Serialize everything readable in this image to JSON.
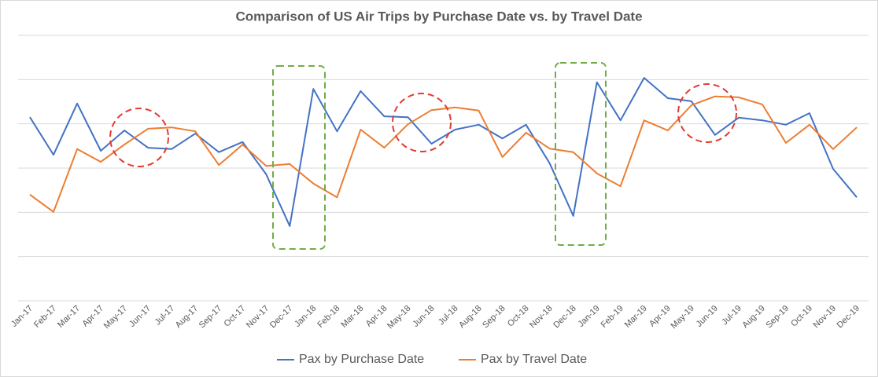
{
  "chart_data": {
    "type": "line",
    "title": "Comparison of US Air Trips by Purchase Date vs. by Travel Date",
    "categories": [
      "Jan-17",
      "Feb-17",
      "Mar-17",
      "Apr-17",
      "May-17",
      "Jun-17",
      "Jul-17",
      "Aug-17",
      "Sep-17",
      "Oct-17",
      "Nov-17",
      "Dec-17",
      "Jan-18",
      "Feb-18",
      "Mar-18",
      "Apr-18",
      "May-18",
      "Jun-18",
      "Jul-18",
      "Aug-18",
      "Sep-18",
      "Oct-18",
      "Nov-18",
      "Dec-18",
      "Jan-19",
      "Feb-19",
      "Mar-19",
      "Apr-19",
      "May-19",
      "Jun-19",
      "Jul-19",
      "Aug-19",
      "Sep-19",
      "Oct-19",
      "Nov-19",
      "Dec-19"
    ],
    "series": [
      {
        "name": "Pax by Purchase Date",
        "color": "#4472c4",
        "values": [
          4.15,
          3.3,
          4.46,
          3.39,
          3.85,
          3.46,
          3.43,
          3.78,
          3.36,
          3.59,
          2.86,
          1.69,
          4.79,
          3.83,
          4.74,
          4.17,
          4.15,
          3.55,
          3.87,
          3.98,
          3.67,
          3.98,
          3.11,
          1.92,
          4.94,
          4.08,
          5.04,
          4.58,
          4.51,
          3.75,
          4.14,
          4.08,
          3.98,
          4.24,
          2.98,
          2.34
        ]
      },
      {
        "name": "Pax by Travel Date",
        "color": "#ed7d31",
        "values": [
          2.4,
          2.01,
          3.43,
          3.14,
          3.53,
          3.89,
          3.92,
          3.83,
          3.07,
          3.53,
          3.05,
          3.09,
          2.65,
          2.34,
          3.87,
          3.46,
          3.99,
          4.31,
          4.37,
          4.3,
          3.25,
          3.8,
          3.44,
          3.36,
          2.88,
          2.59,
          4.08,
          3.85,
          4.42,
          4.62,
          4.6,
          4.44,
          3.57,
          3.98,
          3.43,
          3.92
        ]
      }
    ],
    "ylim": [
      0,
      6
    ],
    "ygrid": [
      1,
      2,
      3,
      4,
      5,
      6
    ],
    "grid": true,
    "legend": "bottom"
  }
}
